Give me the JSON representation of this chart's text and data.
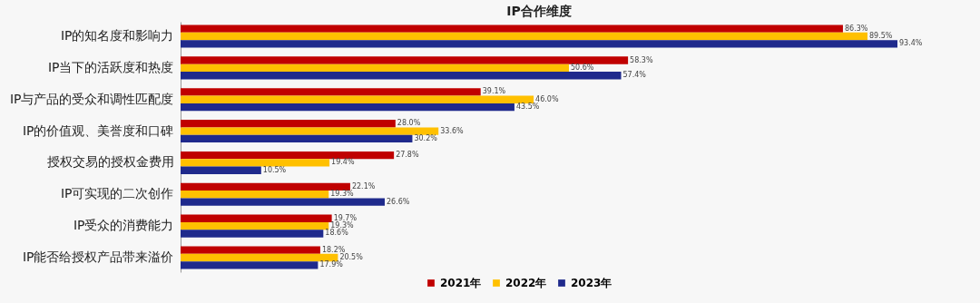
{
  "chart_data": {
    "type": "bar",
    "orientation": "horizontal",
    "title": "IP合作维度",
    "categories": [
      "IP的知名度和影响力",
      "IP当下的活跃度和热度",
      "IP与产品的受众和调性匹配度",
      "IP的价值观、美誉度和口碑",
      "授权交易的授权金费用",
      "IP可实现的二次创作",
      "IP受众的消费能力",
      "IP能否给授权产品带来溢价"
    ],
    "series": [
      {
        "name": "2021年",
        "color": "#c00000",
        "values": [
          86.3,
          58.3,
          39.1,
          28.0,
          27.8,
          22.1,
          19.7,
          18.2
        ],
        "value_labels": [
          "86.3%",
          "58.3%",
          "39.1%",
          "28.0%",
          "27.8%",
          "22.1%",
          "19.7%",
          "18.2%"
        ]
      },
      {
        "name": "2022年",
        "color": "#ffc000",
        "values": [
          89.5,
          50.6,
          46.0,
          33.6,
          19.4,
          19.3,
          19.3,
          20.5
        ],
        "value_labels": [
          "89.5%",
          "50.6%",
          "46.0%",
          "33.6%",
          "19.4%",
          "19.3%",
          "19.3%",
          "20.5%"
        ]
      },
      {
        "name": "2023年",
        "color": "#1f2a8c",
        "values": [
          93.4,
          57.4,
          43.5,
          30.2,
          10.5,
          26.6,
          18.6,
          17.9
        ],
        "value_labels": [
          "93.4%",
          "57.4%",
          "43.5%",
          "30.2%",
          "10.5%",
          "26.6%",
          "18.6%",
          "17.9%"
        ]
      }
    ],
    "legend": "bottom"
  }
}
